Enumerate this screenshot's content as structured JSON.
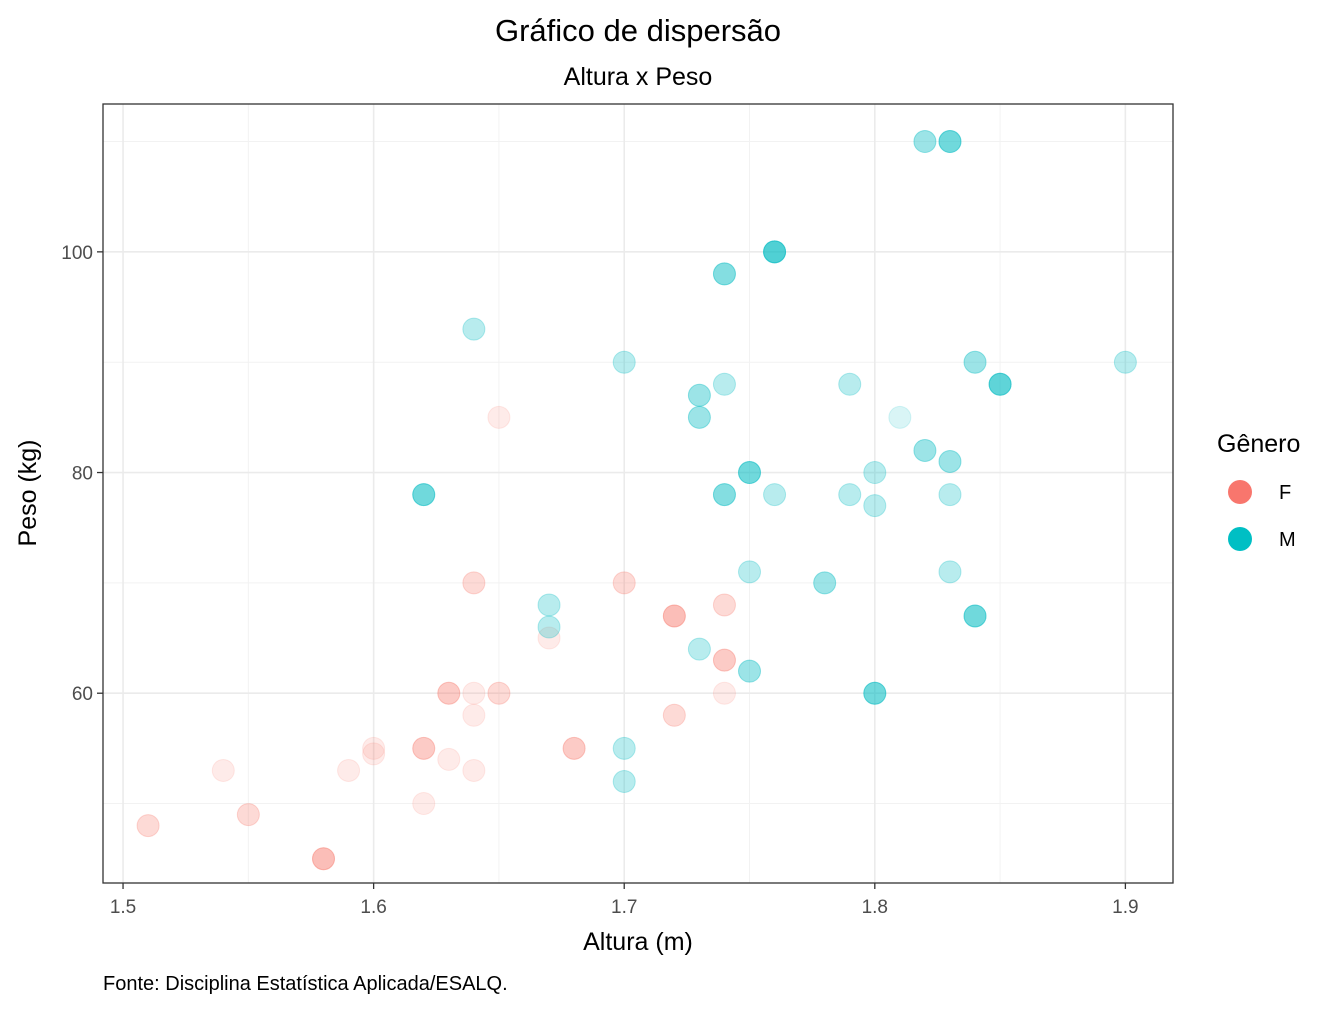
{
  "chart_data": {
    "type": "scatter",
    "title": "Gráfico de dispersão",
    "subtitle": "Altura x Peso",
    "xlabel": "Altura (m)",
    "ylabel": "Peso (kg)",
    "caption": "Fonte: Disciplina Estatística Aplicada/ESALQ.",
    "xlim": [
      1.492,
      1.919
    ],
    "ylim": [
      42.8,
      113.4
    ],
    "x_ticks": [
      1.5,
      1.6,
      1.7,
      1.8,
      1.9
    ],
    "x_tick_labels": [
      "1.5",
      "1.6",
      "1.7",
      "1.8",
      "1.9"
    ],
    "y_ticks": [
      60,
      80,
      100
    ],
    "y_tick_labels": [
      "60",
      "80",
      "100"
    ],
    "grid": true,
    "legend": {
      "title": "Gênero",
      "position": "right",
      "entries": [
        {
          "label": "F",
          "color": "#F8766D"
        },
        {
          "label": "M",
          "color": "#00BFC4"
        }
      ]
    },
    "point_opacity": 0.15,
    "series": [
      {
        "name": "F",
        "color": "#F8766D",
        "points": [
          {
            "x": 1.51,
            "y": 48
          },
          {
            "x": 1.51,
            "y": 48
          },
          {
            "x": 1.54,
            "y": 53
          },
          {
            "x": 1.55,
            "y": 49
          },
          {
            "x": 1.55,
            "y": 49
          },
          {
            "x": 1.58,
            "y": 45
          },
          {
            "x": 1.58,
            "y": 45
          },
          {
            "x": 1.58,
            "y": 45
          },
          {
            "x": 1.58,
            "y": 45
          },
          {
            "x": 1.59,
            "y": 53
          },
          {
            "x": 1.6,
            "y": 55
          },
          {
            "x": 1.6,
            "y": 54.5
          },
          {
            "x": 1.62,
            "y": 55
          },
          {
            "x": 1.62,
            "y": 55
          },
          {
            "x": 1.62,
            "y": 55
          },
          {
            "x": 1.62,
            "y": 50
          },
          {
            "x": 1.63,
            "y": 60
          },
          {
            "x": 1.63,
            "y": 60
          },
          {
            "x": 1.63,
            "y": 60
          },
          {
            "x": 1.63,
            "y": 54
          },
          {
            "x": 1.64,
            "y": 70
          },
          {
            "x": 1.64,
            "y": 70
          },
          {
            "x": 1.64,
            "y": 60
          },
          {
            "x": 1.64,
            "y": 58
          },
          {
            "x": 1.64,
            "y": 53
          },
          {
            "x": 1.65,
            "y": 85
          },
          {
            "x": 1.65,
            "y": 60
          },
          {
            "x": 1.65,
            "y": 60
          },
          {
            "x": 1.67,
            "y": 65
          },
          {
            "x": 1.68,
            "y": 55
          },
          {
            "x": 1.68,
            "y": 55
          },
          {
            "x": 1.68,
            "y": 55
          },
          {
            "x": 1.7,
            "y": 70
          },
          {
            "x": 1.7,
            "y": 70
          },
          {
            "x": 1.72,
            "y": 67
          },
          {
            "x": 1.72,
            "y": 67
          },
          {
            "x": 1.72,
            "y": 67
          },
          {
            "x": 1.72,
            "y": 67
          },
          {
            "x": 1.72,
            "y": 58
          },
          {
            "x": 1.72,
            "y": 58
          },
          {
            "x": 1.74,
            "y": 68
          },
          {
            "x": 1.74,
            "y": 68
          },
          {
            "x": 1.74,
            "y": 63
          },
          {
            "x": 1.74,
            "y": 63
          },
          {
            "x": 1.74,
            "y": 63
          },
          {
            "x": 1.74,
            "y": 60
          }
        ]
      },
      {
        "name": "M",
        "color": "#00BFC4",
        "points": [
          {
            "x": 1.62,
            "y": 78
          },
          {
            "x": 1.62,
            "y": 78
          },
          {
            "x": 1.62,
            "y": 78
          },
          {
            "x": 1.62,
            "y": 78
          },
          {
            "x": 1.62,
            "y": 78
          },
          {
            "x": 1.64,
            "y": 93
          },
          {
            "x": 1.64,
            "y": 93
          },
          {
            "x": 1.67,
            "y": 68
          },
          {
            "x": 1.67,
            "y": 68
          },
          {
            "x": 1.67,
            "y": 66
          },
          {
            "x": 1.67,
            "y": 66
          },
          {
            "x": 1.7,
            "y": 90
          },
          {
            "x": 1.7,
            "y": 90
          },
          {
            "x": 1.7,
            "y": 55
          },
          {
            "x": 1.7,
            "y": 55
          },
          {
            "x": 1.7,
            "y": 52
          },
          {
            "x": 1.7,
            "y": 52
          },
          {
            "x": 1.73,
            "y": 87
          },
          {
            "x": 1.73,
            "y": 87
          },
          {
            "x": 1.73,
            "y": 87
          },
          {
            "x": 1.73,
            "y": 85
          },
          {
            "x": 1.73,
            "y": 85
          },
          {
            "x": 1.73,
            "y": 85
          },
          {
            "x": 1.73,
            "y": 64
          },
          {
            "x": 1.73,
            "y": 64
          },
          {
            "x": 1.74,
            "y": 98
          },
          {
            "x": 1.74,
            "y": 98
          },
          {
            "x": 1.74,
            "y": 98
          },
          {
            "x": 1.74,
            "y": 98
          },
          {
            "x": 1.74,
            "y": 88
          },
          {
            "x": 1.74,
            "y": 88
          },
          {
            "x": 1.74,
            "y": 78
          },
          {
            "x": 1.74,
            "y": 78
          },
          {
            "x": 1.74,
            "y": 78
          },
          {
            "x": 1.74,
            "y": 78
          },
          {
            "x": 1.75,
            "y": 80
          },
          {
            "x": 1.75,
            "y": 80
          },
          {
            "x": 1.75,
            "y": 80
          },
          {
            "x": 1.75,
            "y": 80
          },
          {
            "x": 1.75,
            "y": 80
          },
          {
            "x": 1.75,
            "y": 71
          },
          {
            "x": 1.75,
            "y": 71
          },
          {
            "x": 1.75,
            "y": 62
          },
          {
            "x": 1.75,
            "y": 62
          },
          {
            "x": 1.75,
            "y": 62
          },
          {
            "x": 1.76,
            "y": 100
          },
          {
            "x": 1.76,
            "y": 100
          },
          {
            "x": 1.76,
            "y": 100
          },
          {
            "x": 1.76,
            "y": 100
          },
          {
            "x": 1.76,
            "y": 100
          },
          {
            "x": 1.76,
            "y": 100
          },
          {
            "x": 1.76,
            "y": 100
          },
          {
            "x": 1.76,
            "y": 78
          },
          {
            "x": 1.76,
            "y": 78
          },
          {
            "x": 1.78,
            "y": 70
          },
          {
            "x": 1.78,
            "y": 70
          },
          {
            "x": 1.78,
            "y": 70
          },
          {
            "x": 1.79,
            "y": 88
          },
          {
            "x": 1.79,
            "y": 88
          },
          {
            "x": 1.79,
            "y": 78
          },
          {
            "x": 1.79,
            "y": 78
          },
          {
            "x": 1.8,
            "y": 80
          },
          {
            "x": 1.8,
            "y": 80
          },
          {
            "x": 1.8,
            "y": 77
          },
          {
            "x": 1.8,
            "y": 77
          },
          {
            "x": 1.8,
            "y": 60
          },
          {
            "x": 1.8,
            "y": 60
          },
          {
            "x": 1.8,
            "y": 60
          },
          {
            "x": 1.8,
            "y": 60
          },
          {
            "x": 1.8,
            "y": 60
          },
          {
            "x": 1.81,
            "y": 85
          },
          {
            "x": 1.82,
            "y": 110
          },
          {
            "x": 1.82,
            "y": 110
          },
          {
            "x": 1.82,
            "y": 110
          },
          {
            "x": 1.82,
            "y": 82
          },
          {
            "x": 1.82,
            "y": 82
          },
          {
            "x": 1.82,
            "y": 82
          },
          {
            "x": 1.83,
            "y": 110
          },
          {
            "x": 1.83,
            "y": 110
          },
          {
            "x": 1.83,
            "y": 110
          },
          {
            "x": 1.83,
            "y": 110
          },
          {
            "x": 1.83,
            "y": 110
          },
          {
            "x": 1.83,
            "y": 81
          },
          {
            "x": 1.83,
            "y": 81
          },
          {
            "x": 1.83,
            "y": 81
          },
          {
            "x": 1.83,
            "y": 78
          },
          {
            "x": 1.83,
            "y": 78
          },
          {
            "x": 1.83,
            "y": 71
          },
          {
            "x": 1.83,
            "y": 71
          },
          {
            "x": 1.84,
            "y": 90
          },
          {
            "x": 1.84,
            "y": 90
          },
          {
            "x": 1.84,
            "y": 90
          },
          {
            "x": 1.84,
            "y": 67
          },
          {
            "x": 1.84,
            "y": 67
          },
          {
            "x": 1.84,
            "y": 67
          },
          {
            "x": 1.84,
            "y": 67
          },
          {
            "x": 1.84,
            "y": 67
          },
          {
            "x": 1.85,
            "y": 88
          },
          {
            "x": 1.85,
            "y": 88
          },
          {
            "x": 1.85,
            "y": 88
          },
          {
            "x": 1.85,
            "y": 88
          },
          {
            "x": 1.85,
            "y": 88
          },
          {
            "x": 1.85,
            "y": 88
          },
          {
            "x": 1.9,
            "y": 90
          },
          {
            "x": 1.9,
            "y": 90
          }
        ]
      }
    ]
  }
}
